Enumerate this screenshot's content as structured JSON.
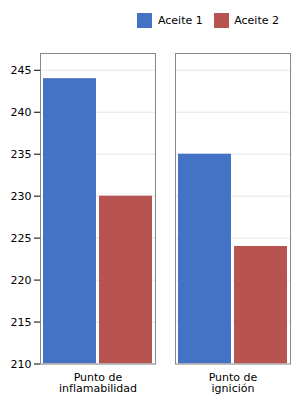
{
  "chart_data": {
    "type": "bar",
    "categories": [
      "Punto de\ninflamabilidad",
      "Punto de\nignición"
    ],
    "series": [
      {
        "name": "Aceite 1",
        "color": "#4472c4",
        "values": [
          244,
          235
        ]
      },
      {
        "name": "Aceite 2",
        "color": "#b85450",
        "values": [
          230,
          224
        ]
      }
    ],
    "ylim": [
      210,
      247
    ],
    "yticks": [
      210,
      215,
      220,
      225,
      230,
      235,
      240,
      245
    ],
    "grid": true,
    "legend": "upper right"
  }
}
